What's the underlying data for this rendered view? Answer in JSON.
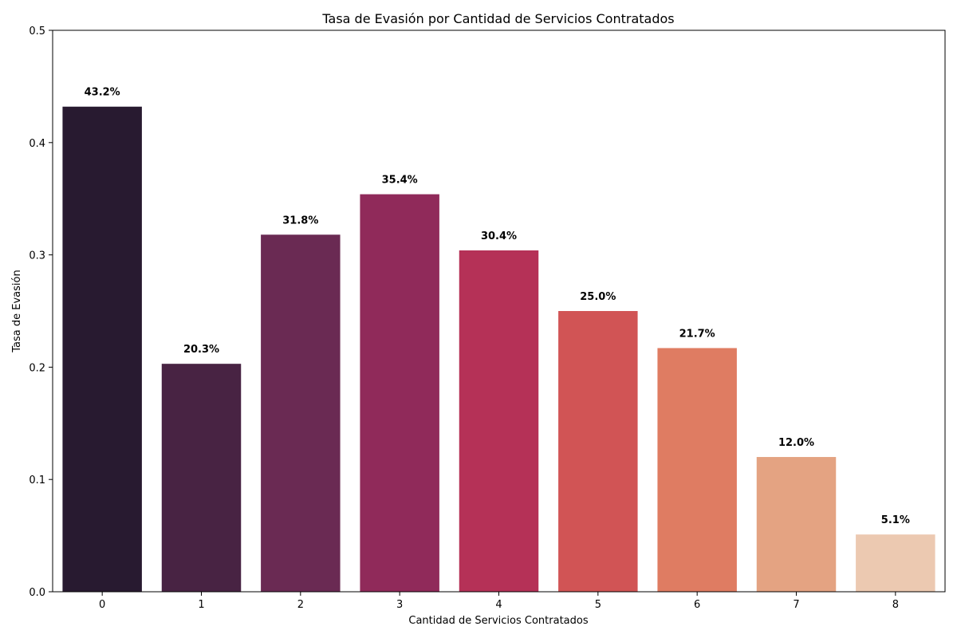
{
  "chart_data": {
    "type": "bar",
    "title": "Tasa de Evasión por Cantidad de Servicios Contratados",
    "xlabel": "Cantidad de Servicios Contratados",
    "ylabel": "Tasa de Evasión",
    "categories": [
      "0",
      "1",
      "2",
      "3",
      "4",
      "5",
      "6",
      "7",
      "8"
    ],
    "values": [
      0.432,
      0.203,
      0.318,
      0.354,
      0.304,
      0.25,
      0.217,
      0.12,
      0.051
    ],
    "data_labels": [
      "43.2%",
      "20.3%",
      "31.8%",
      "35.4%",
      "30.4%",
      "25.0%",
      "21.7%",
      "12.0%",
      "5.1%"
    ],
    "colors": [
      "#281a30",
      "#482343",
      "#6a2a53",
      "#902a5a",
      "#b53157",
      "#d15455",
      "#df7c62",
      "#e4a382",
      "#ecc9b1"
    ],
    "ylim": [
      0,
      0.5
    ],
    "yticks": [
      0.0,
      0.1,
      0.2,
      0.3,
      0.4,
      0.5
    ],
    "ytick_labels": [
      "0.0",
      "0.1",
      "0.2",
      "0.3",
      "0.4",
      "0.5"
    ],
    "grid": false,
    "legend": "none"
  }
}
